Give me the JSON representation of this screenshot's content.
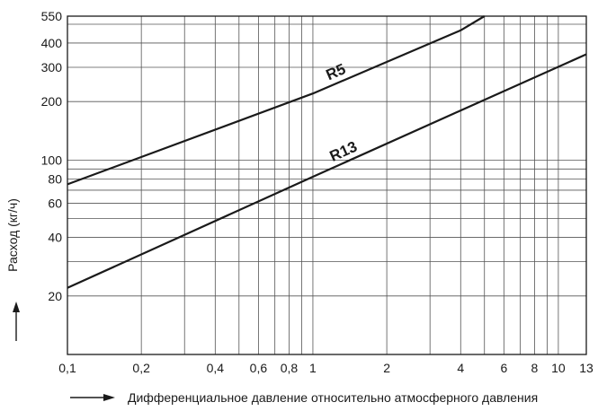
{
  "chart_data": {
    "type": "line",
    "xlabel": "Дифференциальное давление относительно атмосферного давления",
    "ylabel": "Расход (кг/ч)",
    "x_scale": "log",
    "y_scale": "log",
    "xlim": [
      0.1,
      13
    ],
    "ylim": [
      10,
      550
    ],
    "grid": true,
    "x_ticks": [
      "0,1",
      "0,2",
      "0,4",
      "0,6",
      "0,8",
      "1",
      "2",
      "4",
      "6",
      "8",
      "10",
      "13"
    ],
    "y_ticks": [
      "550",
      "400",
      "300",
      "200",
      "100",
      "80",
      "60",
      "40",
      "20"
    ],
    "series": [
      {
        "name": "R5",
        "x": [
          0.1,
          1,
          4,
          5
        ],
        "y": [
          75,
          220,
          465,
          550
        ]
      },
      {
        "name": "R13",
        "x": [
          0.1,
          1,
          4,
          13
        ],
        "y": [
          22,
          82,
          180,
          350
        ]
      }
    ]
  }
}
